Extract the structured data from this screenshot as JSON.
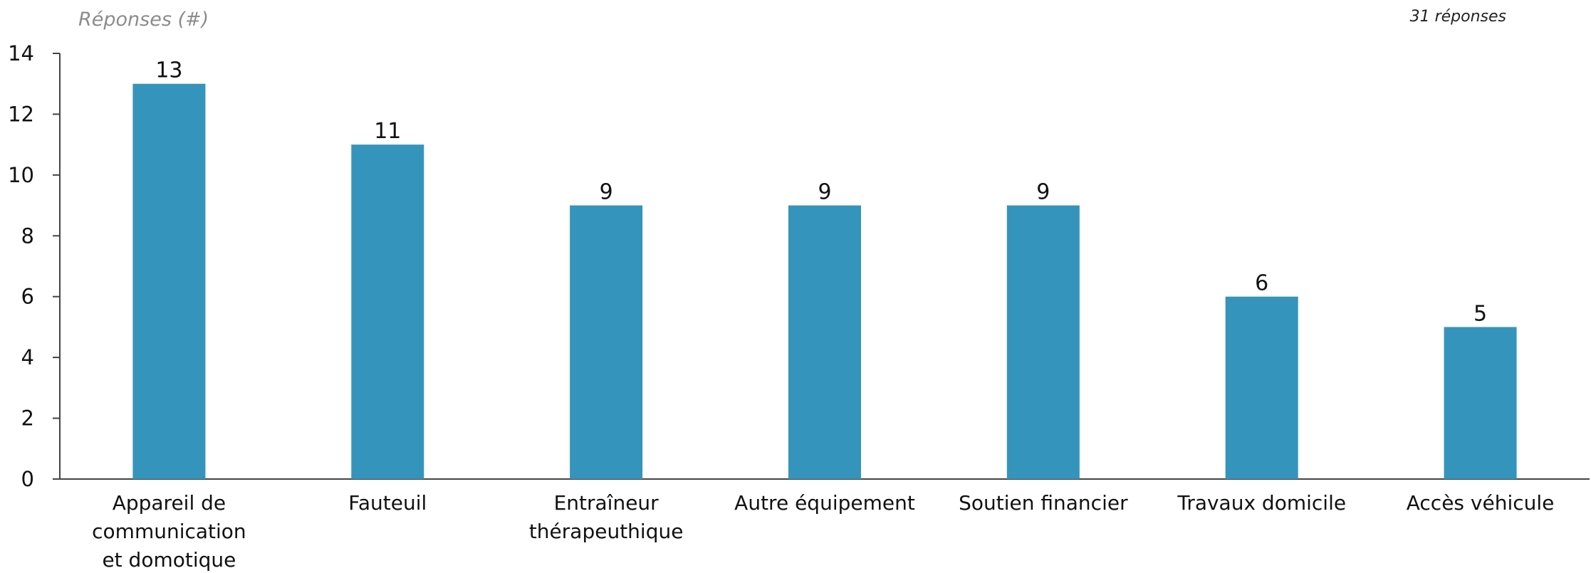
{
  "chart_data": {
    "type": "bar",
    "ylabel": "Réponses (#)",
    "note": "31 réponses",
    "categories": [
      "Appareil de communication et domotique",
      "Fauteuil",
      "Entraîneur thérapeuthique",
      "Autre équipement",
      "Soutien financier",
      "Travaux domicile",
      "Accès véhicule"
    ],
    "category_lines": [
      [
        "Appareil de",
        "communication",
        "et domotique"
      ],
      [
        "Fauteuil"
      ],
      [
        "Entraîneur",
        "thérapeuthique"
      ],
      [
        "Autre équipement"
      ],
      [
        "Soutien financier"
      ],
      [
        "Travaux domicile"
      ],
      [
        "Accès véhicule"
      ]
    ],
    "values": [
      13,
      11,
      9,
      9,
      9,
      6,
      5
    ],
    "ylim": [
      0,
      14
    ],
    "yticks": [
      0,
      2,
      4,
      6,
      8,
      10,
      12,
      14
    ],
    "grid": false,
    "legend": "none",
    "bar_color": "#3594bb",
    "axis_color": "#444444"
  }
}
